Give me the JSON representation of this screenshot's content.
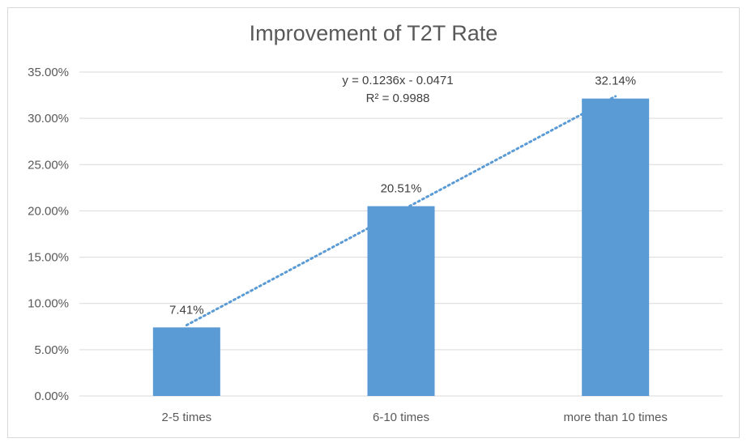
{
  "chart_data": {
    "type": "bar",
    "title": "Improvement of T2T Rate",
    "categories": [
      "2-5 times",
      "6-10 times",
      "more than 10 times"
    ],
    "values": [
      7.41,
      20.51,
      32.14
    ],
    "data_labels": [
      "7.41%",
      "20.51%",
      "32.14%"
    ],
    "y_ticks": [
      "0.00%",
      "5.00%",
      "10.00%",
      "15.00%",
      "20.00%",
      "25.00%",
      "30.00%",
      "35.00%"
    ],
    "ylim": [
      0,
      35
    ],
    "grid": true,
    "bar_color": "#5b9bd5",
    "trendline": {
      "type": "linear",
      "equation": "y = 0.1236x - 0.0471",
      "r_squared": "R² = 0.9988",
      "color": "#5b9bd5"
    },
    "legend": "none"
  }
}
